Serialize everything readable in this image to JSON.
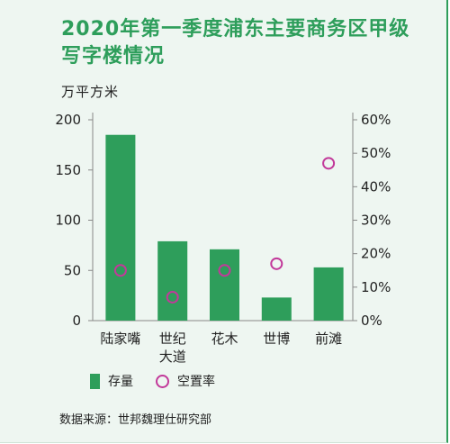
{
  "chart_data": {
    "type": "bar",
    "title": "2020年第一季度浦东主要商务区甲级写字楼情况",
    "ylabel_left": "万平方米",
    "categories": [
      "陆家嘴",
      "世纪大道",
      "花木",
      "世博",
      "前滩"
    ],
    "category_lines": [
      [
        "陆家嘴"
      ],
      [
        "世纪",
        "大道"
      ],
      [
        "花木"
      ],
      [
        "世博"
      ],
      [
        "前滩"
      ]
    ],
    "series": [
      {
        "name": "存量",
        "type": "bar",
        "axis": "left",
        "color": "#2e9e5b",
        "values": [
          185,
          79,
          71,
          23,
          53
        ]
      },
      {
        "name": "空置率",
        "type": "scatter",
        "axis": "right",
        "color": "#c2399a",
        "values": [
          15,
          7,
          15,
          17,
          47
        ]
      }
    ],
    "ylim_left": [
      0,
      200
    ],
    "yticks_left": [
      "200",
      "150",
      "100",
      "50",
      "0"
    ],
    "ylim_right": [
      0,
      60
    ],
    "yticks_right": [
      "60%",
      "50%",
      "40%",
      "30%",
      "20%",
      "10%",
      "0%"
    ],
    "legend": [
      "存量",
      "空置率"
    ],
    "legend_position": "bottom-left",
    "grid": false
  },
  "source": "数据来源：世邦魏理仕研究部"
}
